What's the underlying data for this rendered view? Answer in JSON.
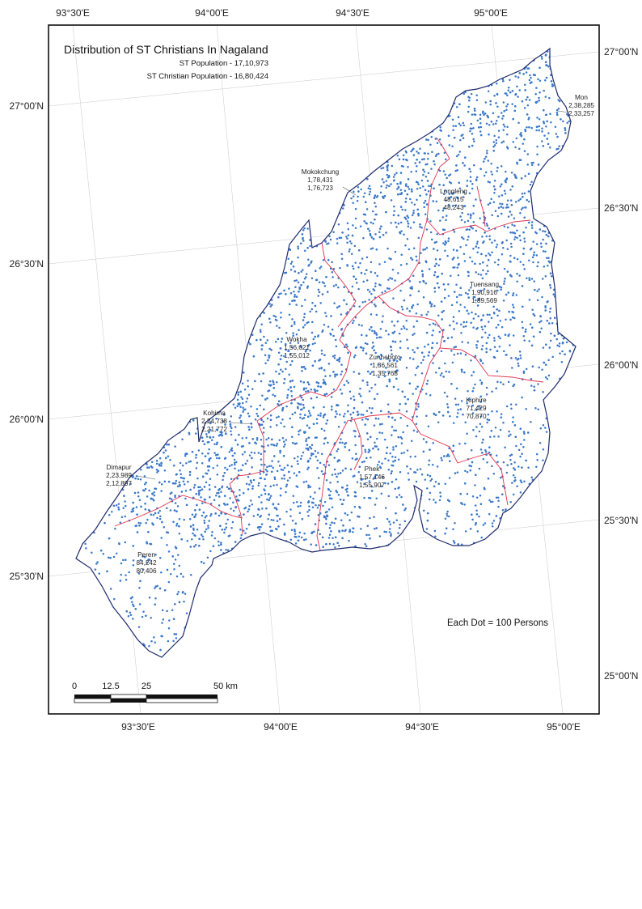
{
  "map": {
    "title": "Distribution of ST Christians In Nagaland",
    "st_population": "ST Population - 17,10,973",
    "st_christian_population": "ST Christian Population - 16,80,424",
    "legend": "Each Dot = 100 Persons",
    "dot_color": "#3a78c9",
    "boundary_color": "#1d2a6b",
    "district_border_color": "#e0304a"
  },
  "ticks": {
    "top": [
      "93°30'E",
      "94°00'E",
      "94°30'E",
      "95°00'E"
    ],
    "bottom": [
      "93°30'E",
      "94°00'E",
      "94°30'E",
      "95°00'E"
    ],
    "left": [
      "27°00'N",
      "26°30'N",
      "26°00'N",
      "25°30'N"
    ],
    "right": [
      "27°00'N",
      "26°30'N",
      "26°00'N",
      "25°30'N",
      "25°00'N"
    ]
  },
  "scale_bar": {
    "labels": [
      "0",
      "12.5",
      "25",
      "50 km"
    ]
  },
  "districts": [
    {
      "name": "Mon",
      "st": "2,38,285",
      "christian": "2,33,257"
    },
    {
      "name": "Mokokchung",
      "st": "1,78,431",
      "christian": "1,76,723"
    },
    {
      "name": "Longleng",
      "st": "48,615",
      "christian": "48,243"
    },
    {
      "name": "Tuensang",
      "st": "1,90,916",
      "christian": "1,89,569"
    },
    {
      "name": "Wokha",
      "st": "1,56,621",
      "christian": "1,55,012"
    },
    {
      "name": "Zunheboto",
      "st": "1,36,561",
      "christian": "1,35,768"
    },
    {
      "name": "Kohima",
      "st": "2,24,738",
      "christian": "2,21,772"
    },
    {
      "name": "Kiphire",
      "st": "71,429",
      "christian": "70,870"
    },
    {
      "name": "Dimapur",
      "st": "2,23,989",
      "christian": "2,12,897"
    },
    {
      "name": "Phek",
      "st": "1,57,146",
      "christian": "1,55,907"
    },
    {
      "name": "Peren",
      "st": "84,242",
      "christian": "80,406"
    }
  ]
}
